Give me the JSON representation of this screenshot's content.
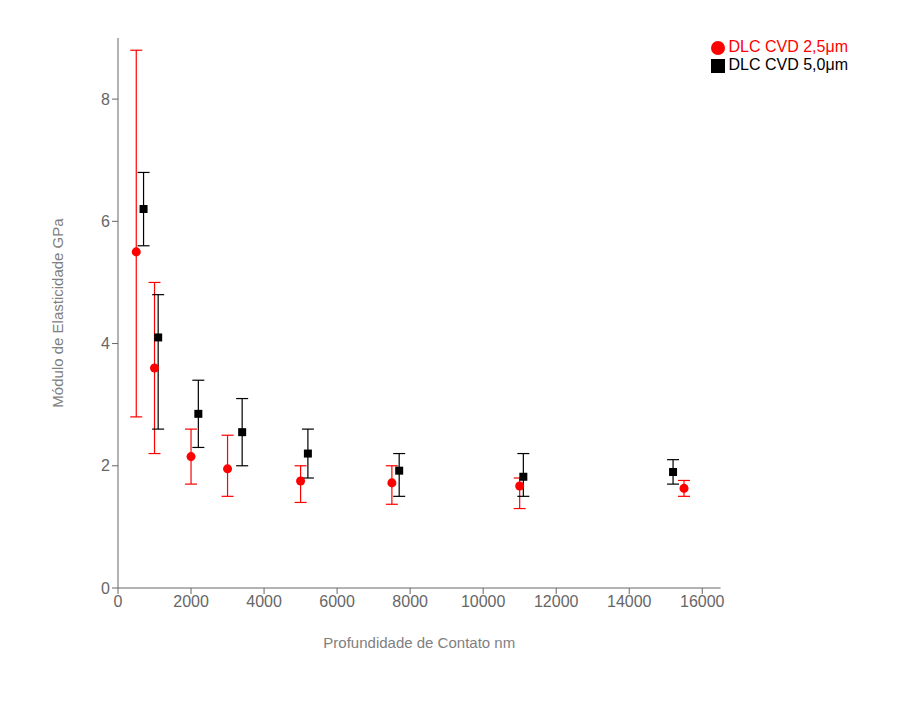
{
  "chart_data": {
    "type": "scatter",
    "xlabel": "Profundidade de Contato nm",
    "ylabel": "Módulo de Elasticidade GPa",
    "xlim": [
      0,
      16500
    ],
    "ylim": [
      0,
      9
    ],
    "xticks": [
      0,
      2000,
      4000,
      6000,
      8000,
      10000,
      12000,
      14000,
      16000
    ],
    "yticks": [
      0,
      2,
      4,
      6,
      8
    ],
    "grid": false,
    "legend": "upper right",
    "series": [
      {
        "name": "DLC CVD 2,5μm",
        "color": "#ff0000",
        "marker": "circle",
        "x": [
          500,
          1000,
          2000,
          3000,
          5000,
          7500,
          11000,
          15500
        ],
        "values": [
          5.5,
          3.6,
          2.15,
          1.95,
          1.75,
          1.72,
          1.67,
          1.63
        ],
        "yerr_lo": [
          2.7,
          1.4,
          0.45,
          0.45,
          0.35,
          0.35,
          0.37,
          0.13
        ],
        "yerr_hi": [
          3.3,
          1.4,
          0.45,
          0.55,
          0.25,
          0.28,
          0.13,
          0.13
        ]
      },
      {
        "name": "DLC CVD 5,0μm",
        "color": "#000000",
        "marker": "square",
        "x": [
          700,
          1100,
          2200,
          3400,
          5200,
          7700,
          11100,
          15200
        ],
        "values": [
          6.2,
          4.1,
          2.85,
          2.55,
          2.2,
          1.92,
          1.82,
          1.9
        ],
        "yerr_lo": [
          0.6,
          1.5,
          0.55,
          0.55,
          0.4,
          0.42,
          0.32,
          0.2
        ],
        "yerr_hi": [
          0.6,
          0.7,
          0.55,
          0.55,
          0.4,
          0.28,
          0.38,
          0.2
        ]
      }
    ]
  }
}
